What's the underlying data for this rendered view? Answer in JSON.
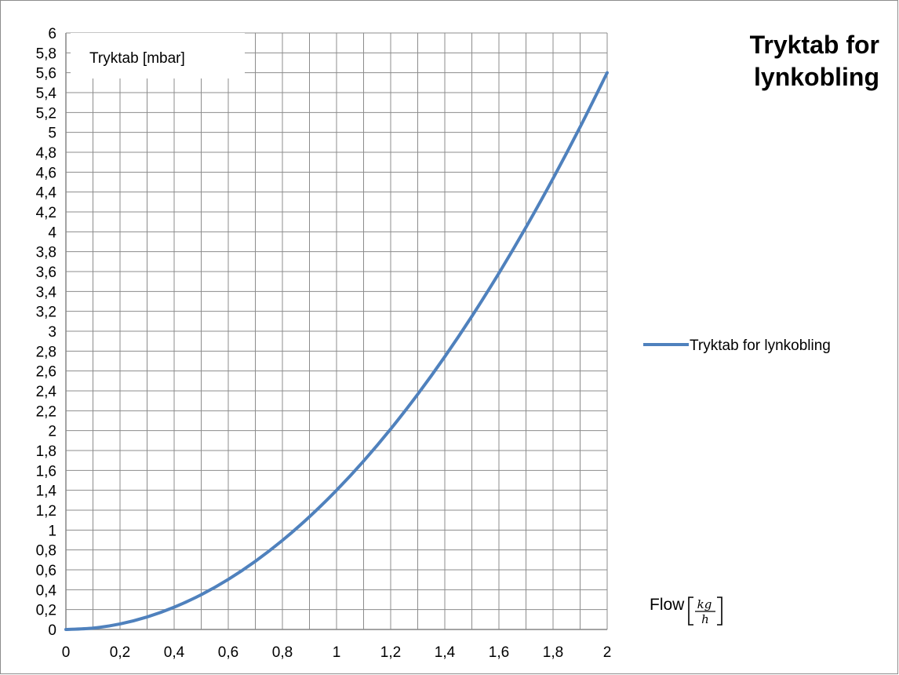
{
  "chart_data": {
    "type": "line",
    "title": "Tryktab for lynkobling",
    "title_lines": [
      "Tryktab for",
      "lynkobling"
    ],
    "ylabel": "Tryktab [mbar]",
    "xlabel": "Flow",
    "xlabel_unit": {
      "numerator": "kg",
      "denominator": "h"
    },
    "xlim": [
      0,
      2
    ],
    "ylim": [
      0,
      6
    ],
    "x_ticks": [
      "0",
      "0,2",
      "0,4",
      "0,6",
      "0,8",
      "1",
      "1,2",
      "1,4",
      "1,6",
      "1,8",
      "2"
    ],
    "y_ticks": [
      "0",
      "0,2",
      "0,4",
      "0,6",
      "0,8",
      "1",
      "1,2",
      "1,4",
      "1,6",
      "1,8",
      "2",
      "2,2",
      "2,4",
      "2,6",
      "2,8",
      "3",
      "3,2",
      "3,4",
      "3,6",
      "3,8",
      "4",
      "4,2",
      "4,4",
      "4,6",
      "4,8",
      "5",
      "5,2",
      "5,4",
      "5,6",
      "5,8",
      "6"
    ],
    "grid": true,
    "minor_grid_x": true,
    "legend_position": "right",
    "series": [
      {
        "name": "Tryktab for lynkobling",
        "color": "#4f81bd",
        "x": [
          0,
          0.1,
          0.2,
          0.3,
          0.4,
          0.5,
          0.6,
          0.7,
          0.8,
          0.9,
          1.0,
          1.1,
          1.2,
          1.3,
          1.4,
          1.5,
          1.6,
          1.7,
          1.8,
          1.9,
          2.0
        ],
        "y": [
          0,
          0.014,
          0.056,
          0.126,
          0.224,
          0.35,
          0.504,
          0.686,
          0.896,
          1.134,
          1.4,
          1.694,
          2.016,
          2.366,
          2.744,
          3.15,
          3.584,
          4.046,
          4.536,
          5.054,
          5.6
        ]
      }
    ]
  }
}
